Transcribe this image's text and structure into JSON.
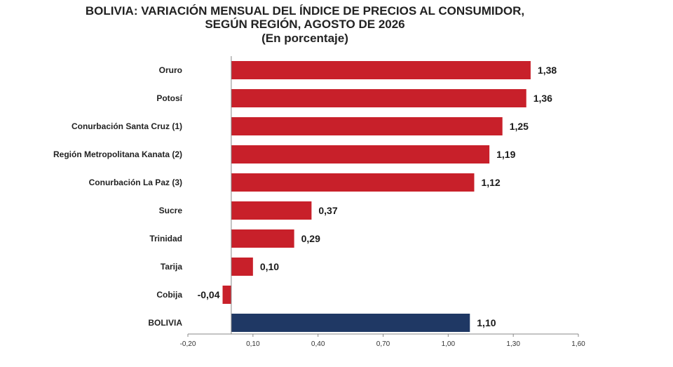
{
  "colors": {
    "region_bar": "#c8202a",
    "country_bar": "#1f3864",
    "axis": "#888888"
  },
  "chart_data": {
    "type": "bar",
    "orientation": "horizontal",
    "title": "BOLIVIA: VARIACIÓN MENSUAL DEL ÍNDICE DE PRECIOS AL CONSUMIDOR,",
    "title_line2": "SEGÚN REGIÓN, AGOSTO DE 2026",
    "subtitle": "(En porcentaje)",
    "categories": [
      "Oruro",
      "Potosí",
      "Conurbación Santa Cruz (1)",
      "Región Metropolitana Kanata (2)",
      "Conurbación La Paz (3)",
      "Sucre",
      "Trinidad",
      "Tarija",
      "Cobija",
      "BOLIVIA"
    ],
    "values": [
      1.38,
      1.36,
      1.25,
      1.19,
      1.12,
      0.37,
      0.29,
      0.1,
      -0.04,
      1.1
    ],
    "value_labels": [
      "1,38",
      "1,36",
      "1,25",
      "1,19",
      "1,12",
      "0,37",
      "0,29",
      "0,10",
      "-0,04",
      "1,10"
    ],
    "highlight_category": "BOLIVIA",
    "xlim": [
      -0.2,
      1.6
    ],
    "xticks": [
      -0.2,
      0.1,
      0.4,
      0.7,
      1.0,
      1.3,
      1.6
    ],
    "xtick_labels": [
      "-0,20",
      "0,10",
      "0,40",
      "0,70",
      "1,00",
      "1,30",
      "1,60"
    ],
    "xlabel": "",
    "ylabel": "",
    "grid": false,
    "legend": "none"
  }
}
